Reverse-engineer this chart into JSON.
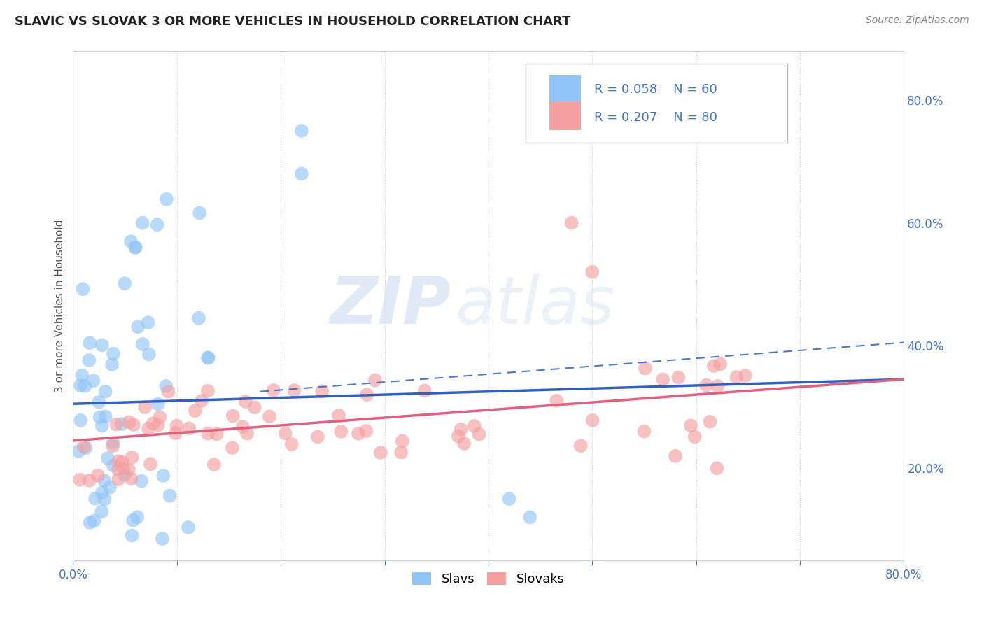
{
  "title": "SLAVIC VS SLOVAK 3 OR MORE VEHICLES IN HOUSEHOLD CORRELATION CHART",
  "source": "Source: ZipAtlas.com",
  "ylabel": "3 or more Vehicles in Household",
  "ylabel_right_ticks": [
    "20.0%",
    "40.0%",
    "60.0%",
    "80.0%"
  ],
  "ylabel_right_vals": [
    0.2,
    0.4,
    0.6,
    0.8
  ],
  "xmin": 0.0,
  "xmax": 0.8,
  "ymin": 0.05,
  "ymax": 0.88,
  "slavs_color": "#92C5F7",
  "slovaks_color": "#F4A0A0",
  "slavs_line_color": "#3060C0",
  "slovaks_line_color": "#E06080",
  "watermark_top": "ZIP",
  "watermark_bot": "atlas",
  "n_slavs": 60,
  "n_slovaks": 80,
  "slavs_line_start_y": 0.305,
  "slavs_line_end_y": 0.345,
  "slovaks_line_start_y": 0.245,
  "slovaks_line_end_y": 0.345
}
